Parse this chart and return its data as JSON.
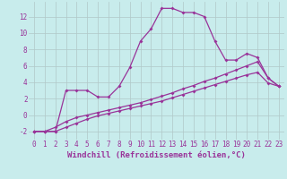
{
  "xlabel": "Windchill (Refroidissement éolien,°C)",
  "background_color": "#c8ecec",
  "line_color": "#993399",
  "x_ticks": [
    0,
    1,
    2,
    3,
    4,
    5,
    6,
    7,
    8,
    9,
    10,
    11,
    12,
    13,
    14,
    15,
    16,
    17,
    18,
    19,
    20,
    21,
    22,
    23
  ],
  "y_ticks": [
    -2,
    0,
    2,
    4,
    6,
    8,
    10,
    12
  ],
  "ylim": [
    -3.0,
    13.8
  ],
  "xlim": [
    -0.5,
    23.5
  ],
  "series1_x": [
    0,
    1,
    2,
    3,
    4,
    5,
    6,
    7,
    8,
    9,
    10,
    11,
    12,
    13,
    14,
    15,
    16,
    17,
    18,
    19,
    20,
    21,
    22,
    23
  ],
  "series1_y": [
    -2,
    -2,
    -2,
    3,
    3,
    3,
    2.2,
    2.2,
    3.5,
    5.8,
    9,
    10.5,
    13,
    13,
    12.5,
    12.5,
    12,
    9,
    6.7,
    6.7,
    7.5,
    7,
    4.5,
    3.5
  ],
  "series2_x": [
    0,
    1,
    2,
    3,
    4,
    5,
    6,
    7,
    8,
    9,
    10,
    11,
    12,
    13,
    14,
    15,
    16,
    17,
    18,
    19,
    20,
    21,
    22,
    23
  ],
  "series2_y": [
    -2,
    -2,
    -1.5,
    -0.8,
    -0.3,
    0.0,
    0.3,
    0.6,
    0.9,
    1.2,
    1.5,
    1.9,
    2.3,
    2.7,
    3.2,
    3.6,
    4.1,
    4.5,
    5.0,
    5.5,
    6.0,
    6.5,
    4.5,
    3.5
  ],
  "series3_x": [
    0,
    1,
    2,
    3,
    4,
    5,
    6,
    7,
    8,
    9,
    10,
    11,
    12,
    13,
    14,
    15,
    16,
    17,
    18,
    19,
    20,
    21,
    22,
    23
  ],
  "series3_y": [
    -2,
    -2,
    -2,
    -1.5,
    -1.0,
    -0.5,
    -0.1,
    0.2,
    0.5,
    0.8,
    1.1,
    1.4,
    1.7,
    2.1,
    2.5,
    2.9,
    3.3,
    3.7,
    4.1,
    4.5,
    4.9,
    5.2,
    3.9,
    3.5
  ],
  "tick_fontsize": 5.5,
  "xlabel_fontsize": 6.5,
  "grid_color": "#b0c8c8",
  "marker": "D",
  "markersize": 2.0,
  "linewidth": 0.9
}
